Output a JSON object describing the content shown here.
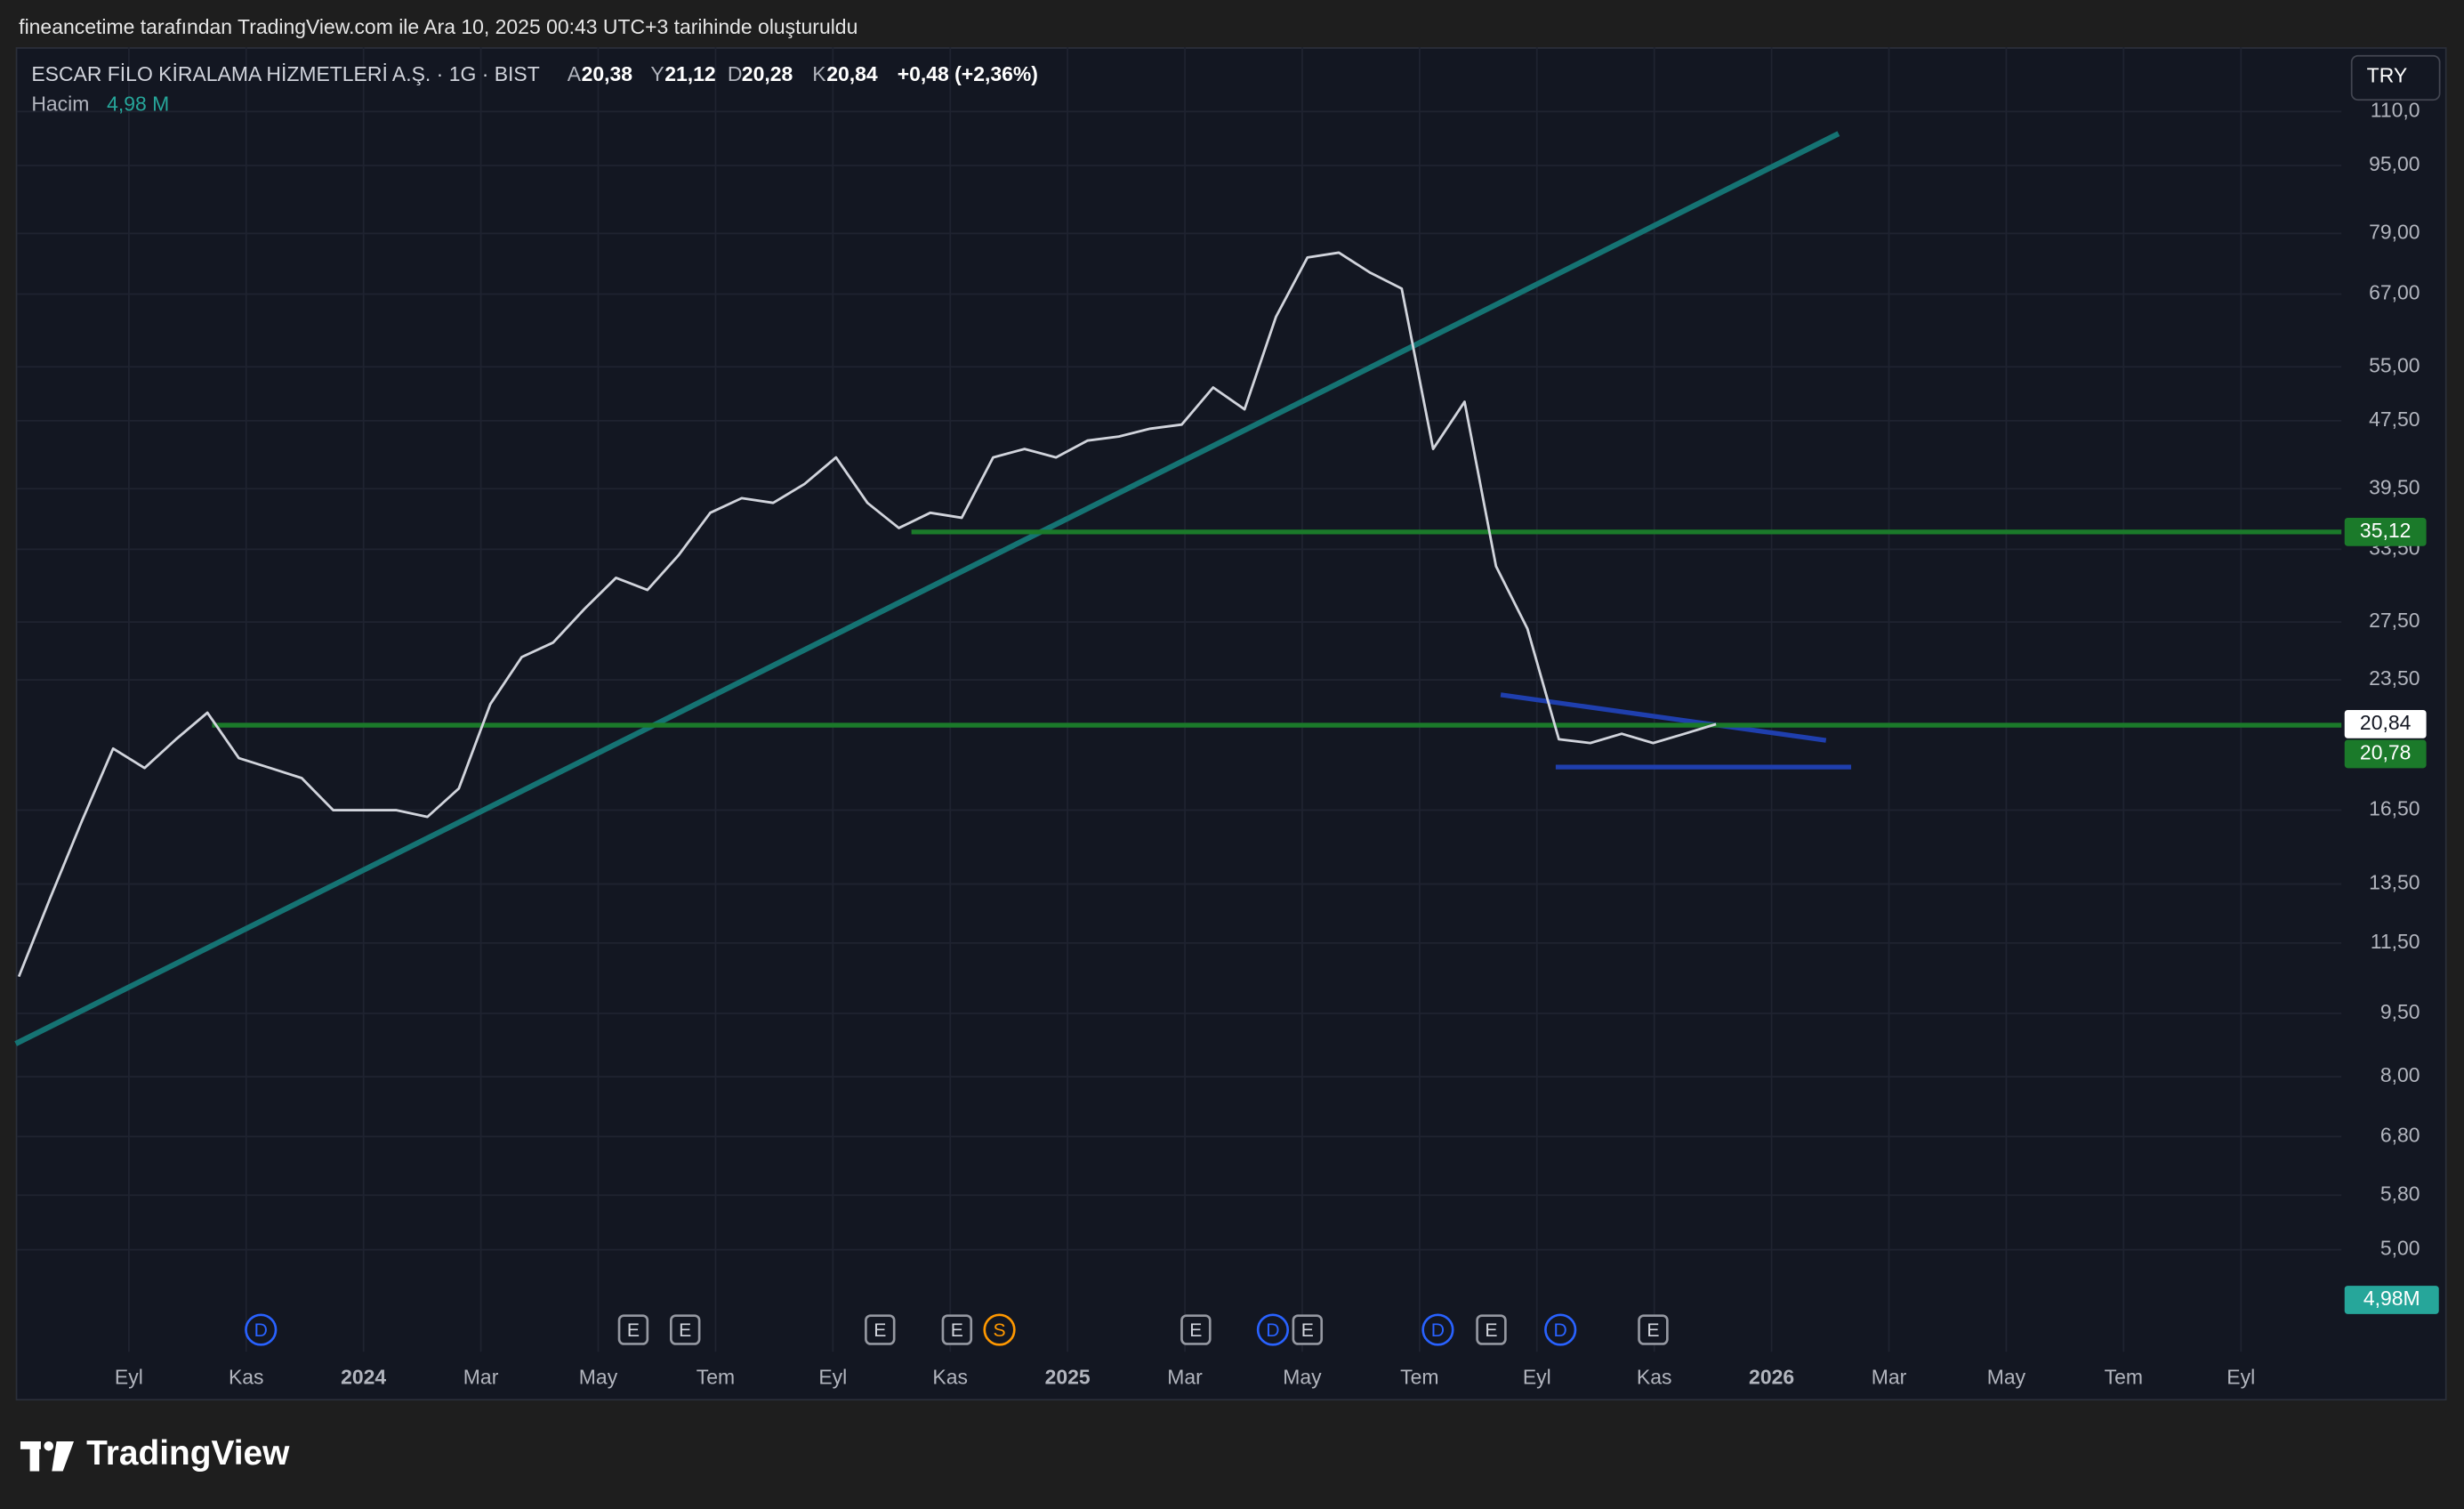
{
  "header": {
    "caption": "fineancetime tarafından TradingView.com ile Ara 10, 2025 00:43 UTC+3 tarihinde oluşturuldu",
    "symbol": "ESCAR FİLO KİRALAMA HİZMETLERİ A.Ş. · 1G · BIST",
    "ohlc": [
      {
        "key": "A",
        "value": "20,38"
      },
      {
        "key": "Y",
        "value": "21,12"
      },
      {
        "key": "D",
        "value": "20,28"
      },
      {
        "key": "K",
        "value": "20,84"
      }
    ],
    "change": "+0,48 (+2,36%)",
    "volume_label": "Hacim",
    "volume_value": "4,98 M",
    "currency": "TRY"
  },
  "chart_data": {
    "type": "line",
    "color": "#d1d4dc",
    "log_scale": true,
    "grid": true,
    "values": [
      10.5,
      13,
      16,
      19.5,
      18.5,
      20,
      21.5,
      19,
      18.5,
      18,
      16.5,
      16.5,
      16.5,
      16.2,
      17.5,
      22,
      25,
      26,
      28.5,
      31,
      30,
      33,
      37,
      38.5,
      38,
      40,
      43,
      38,
      35.5,
      37,
      36.5,
      43,
      44,
      43,
      45,
      45.5,
      46.5,
      47,
      52,
      49,
      63,
      74,
      75,
      71,
      68,
      44,
      50,
      32,
      27,
      20,
      19.8,
      20.3,
      19.8,
      20.3,
      20.84
    ],
    "ylim": [
      3.79,
      131
    ],
    "yticks": [
      {
        "value": 110,
        "label": "110,0"
      },
      {
        "value": 95,
        "label": "95,00"
      },
      {
        "value": 79,
        "label": "79,00"
      },
      {
        "value": 67,
        "label": "67,00"
      },
      {
        "value": 55,
        "label": "55,00"
      },
      {
        "value": 47.5,
        "label": "47,50"
      },
      {
        "value": 39.5,
        "label": "39,50"
      },
      {
        "value": 33.5,
        "label": "33,50"
      },
      {
        "value": 27.5,
        "label": "27,50"
      },
      {
        "value": 23.5,
        "label": "23,50"
      },
      {
        "value": 16.5,
        "label": "16,50"
      },
      {
        "value": 13.5,
        "label": "13,50"
      },
      {
        "value": 11.5,
        "label": "11,50"
      },
      {
        "value": 9.5,
        "label": "9,50"
      },
      {
        "value": 8,
        "label": "8,00"
      },
      {
        "value": 6.8,
        "label": "6,80"
      },
      {
        "value": 5.8,
        "label": "5,80"
      },
      {
        "value": 5,
        "label": "5,00"
      }
    ],
    "xtick_labels": [
      "Eyl",
      "Kas",
      "2024",
      "Mar",
      "May",
      "Tem",
      "Eyl",
      "Kas",
      "2025",
      "Mar",
      "May",
      "Tem",
      "Eyl",
      "Kas",
      "2026",
      "Mar",
      "May",
      "Tem",
      "Eyl"
    ],
    "levels": [
      {
        "value": 35.12,
        "label": "35,12",
        "color": "#1b7a2a"
      },
      {
        "value": 20.78,
        "label": "20,78",
        "color": "#1b7a2a"
      }
    ],
    "last_price": {
      "value": 20.84,
      "label": "20,84"
    },
    "volume_axis_label": "4,98M",
    "events": [
      "D",
      "E",
      "E",
      "E",
      "E",
      "S",
      "E",
      "D",
      "E",
      "D",
      "E",
      "D",
      "E"
    ]
  },
  "footer": {
    "brand": "TradingView"
  }
}
